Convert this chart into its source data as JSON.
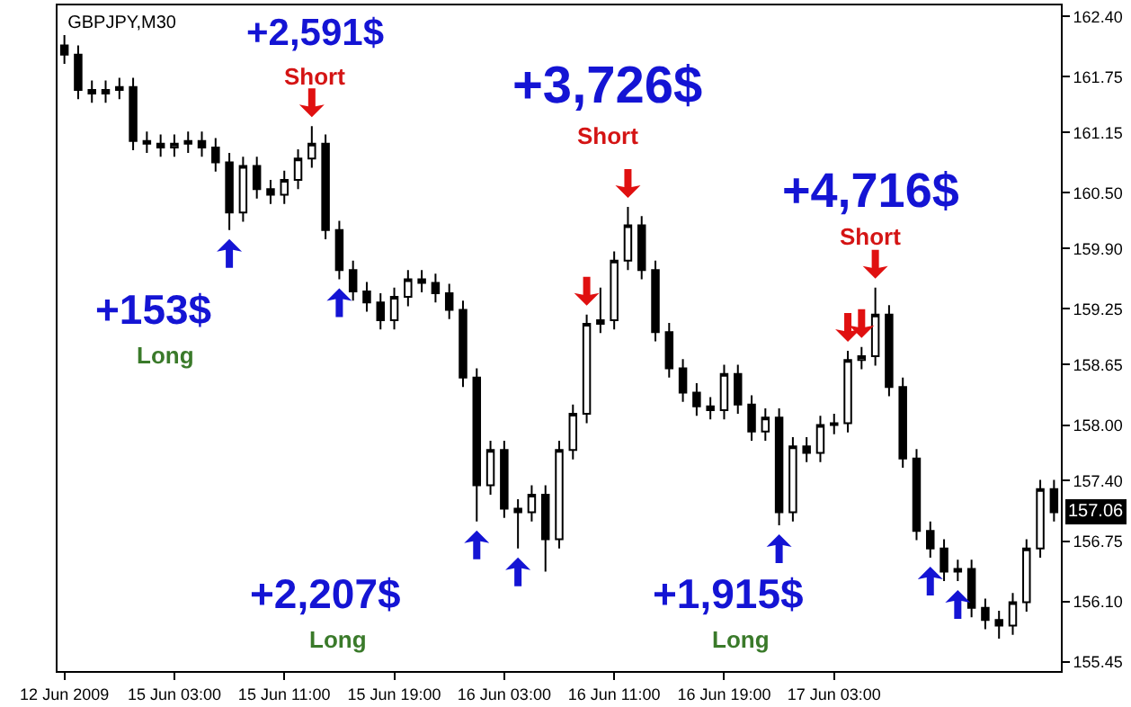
{
  "chart_data": {
    "type": "candlestick",
    "title": "GBPJPY,M30",
    "categories": [
      "12 Jun 2009",
      null,
      null,
      null,
      null,
      null,
      null,
      null,
      "15 Jun 03:00",
      null,
      null,
      null,
      null,
      null,
      null,
      null,
      "15 Jun 11:00",
      null,
      null,
      null,
      null,
      null,
      null,
      null,
      "15 Jun 19:00",
      null,
      null,
      null,
      null,
      null,
      null,
      null,
      "16 Jun 03:00",
      null,
      null,
      null,
      null,
      null,
      null,
      null,
      "16 Jun 11:00",
      null,
      null,
      null,
      null,
      null,
      null,
      null,
      "16 Jun 19:00",
      null,
      null,
      null,
      null,
      null,
      null,
      null,
      "17 Jun 03:00",
      null,
      null,
      null,
      null,
      null,
      null,
      null,
      null,
      null,
      null,
      null,
      null,
      null,
      null,
      null,
      null
    ],
    "ohlc": [
      [
        162.09,
        162.2,
        161.89,
        161.99
      ],
      [
        161.99,
        162.09,
        161.51,
        161.61
      ],
      [
        161.61,
        161.71,
        161.47,
        161.57
      ],
      [
        161.57,
        161.71,
        161.47,
        161.61
      ],
      [
        161.61,
        161.74,
        161.51,
        161.64
      ],
      [
        161.64,
        161.74,
        160.96,
        161.06
      ],
      [
        161.06,
        161.16,
        160.93,
        161.03
      ],
      [
        161.03,
        161.13,
        160.89,
        160.99
      ],
      [
        160.99,
        161.13,
        160.89,
        161.03
      ],
      [
        161.03,
        161.16,
        160.93,
        161.06
      ],
      [
        161.06,
        161.16,
        160.89,
        160.99
      ],
      [
        160.99,
        161.09,
        160.73,
        160.83
      ],
      [
        160.83,
        160.93,
        160.1,
        160.29
      ],
      [
        160.29,
        160.89,
        160.19,
        160.79
      ],
      [
        160.79,
        160.89,
        160.44,
        160.54
      ],
      [
        160.54,
        160.64,
        160.38,
        160.48
      ],
      [
        160.48,
        160.74,
        160.38,
        160.64
      ],
      [
        160.64,
        160.97,
        160.54,
        160.87
      ],
      [
        160.87,
        161.22,
        160.77,
        161.03
      ],
      [
        161.03,
        161.13,
        160.0,
        160.1
      ],
      [
        160.1,
        160.2,
        159.57,
        159.67
      ],
      [
        159.67,
        159.77,
        159.34,
        159.44
      ],
      [
        159.44,
        159.54,
        159.22,
        159.32
      ],
      [
        159.32,
        159.42,
        159.03,
        159.13
      ],
      [
        159.13,
        159.48,
        159.03,
        159.38
      ],
      [
        159.38,
        159.67,
        159.28,
        159.57
      ],
      [
        159.57,
        159.67,
        159.43,
        159.53
      ],
      [
        159.53,
        159.63,
        159.32,
        159.42
      ],
      [
        159.42,
        159.52,
        159.14,
        159.24
      ],
      [
        159.24,
        159.34,
        158.41,
        158.51
      ],
      [
        158.51,
        158.61,
        156.96,
        157.35
      ],
      [
        157.35,
        157.83,
        157.25,
        157.73
      ],
      [
        157.73,
        157.83,
        157.0,
        157.1
      ],
      [
        157.1,
        157.2,
        156.67,
        157.06
      ],
      [
        157.06,
        157.35,
        156.96,
        157.25
      ],
      [
        157.25,
        157.35,
        156.42,
        156.77
      ],
      [
        156.77,
        157.83,
        156.67,
        157.73
      ],
      [
        157.73,
        158.22,
        157.63,
        158.12
      ],
      [
        158.12,
        159.19,
        158.02,
        159.09
      ],
      [
        159.09,
        159.48,
        158.99,
        159.13
      ],
      [
        159.13,
        159.87,
        159.03,
        159.77
      ],
      [
        159.77,
        160.35,
        159.67,
        160.15
      ],
      [
        160.15,
        160.25,
        159.57,
        159.67
      ],
      [
        159.67,
        159.77,
        158.9,
        159.0
      ],
      [
        159.0,
        159.1,
        158.51,
        158.61
      ],
      [
        158.61,
        158.71,
        158.25,
        158.35
      ],
      [
        158.35,
        158.45,
        158.1,
        158.2
      ],
      [
        158.2,
        158.3,
        158.06,
        158.16
      ],
      [
        158.16,
        158.65,
        158.06,
        158.55
      ],
      [
        158.55,
        158.65,
        158.12,
        158.22
      ],
      [
        158.22,
        158.32,
        157.83,
        157.93
      ],
      [
        157.93,
        158.18,
        157.83,
        158.08
      ],
      [
        158.08,
        158.18,
        156.92,
        157.06
      ],
      [
        157.06,
        157.87,
        156.96,
        157.77
      ],
      [
        157.77,
        157.87,
        157.6,
        157.7
      ],
      [
        157.7,
        158.1,
        157.6,
        158.0
      ],
      [
        158.0,
        158.12,
        157.9,
        158.02
      ],
      [
        158.02,
        158.8,
        157.92,
        158.7
      ],
      [
        158.7,
        158.84,
        158.6,
        158.74
      ],
      [
        158.74,
        159.48,
        158.64,
        159.19
      ],
      [
        159.19,
        159.29,
        158.31,
        158.41
      ],
      [
        158.41,
        158.51,
        157.54,
        157.64
      ],
      [
        157.64,
        157.74,
        156.76,
        156.86
      ],
      [
        156.86,
        156.96,
        156.57,
        156.67
      ],
      [
        156.67,
        156.77,
        156.32,
        156.42
      ],
      [
        156.42,
        156.55,
        156.32,
        156.45
      ],
      [
        156.45,
        156.55,
        155.93,
        156.03
      ],
      [
        156.03,
        156.13,
        155.8,
        155.9
      ],
      [
        155.9,
        156.0,
        155.7,
        155.84
      ],
      [
        155.84,
        156.19,
        155.74,
        156.09
      ],
      [
        156.09,
        156.77,
        155.99,
        156.67
      ],
      [
        156.67,
        157.41,
        156.57,
        157.31
      ],
      [
        157.31,
        157.41,
        156.96,
        157.06
      ]
    ],
    "ylim": [
      155.35,
      162.52
    ],
    "yticks": [
      {
        "value": 162.4,
        "label": "162.40"
      },
      161.75,
      161.15,
      {
        "value": 160.5,
        "label": "160.50"
      },
      {
        "value": 159.9,
        "label": "159.90"
      },
      159.25,
      158.65,
      {
        "value": 158,
        "label": "158.00"
      },
      {
        "value": 157.4,
        "label": "157.40"
      },
      156.75,
      {
        "value": 156.1,
        "label": "156.10"
      },
      155.45
    ],
    "annotations": [
      {
        "text": "157.06",
        "y": 157.06
      },
      "+2,591$",
      "Short",
      "+153$",
      "Long",
      "+3,726$",
      "Short",
      "+4,716$",
      "Short",
      "+2,207$",
      "Long",
      "+1,915$",
      "Long"
    ]
  }
}
